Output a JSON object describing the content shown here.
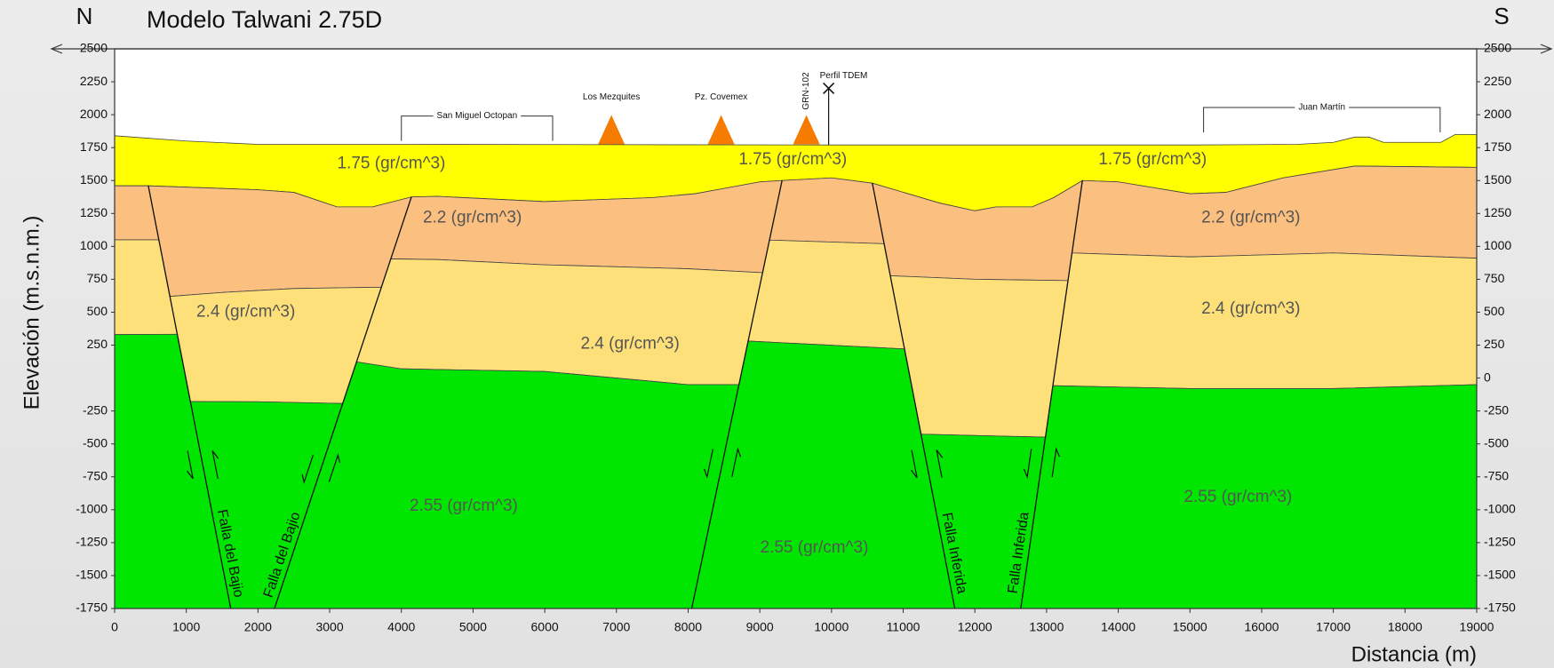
{
  "chart_data": {
    "type": "section",
    "title": "Modelo Talwani 2.75D",
    "north_label": "N",
    "south_label": "S",
    "x_label": "Distancia (m)",
    "y_label": "Elevación (m.s.n.m.)",
    "xlim": [
      0,
      19000
    ],
    "ylim": [
      -1750,
      2500
    ],
    "y2lim": [
      -1750,
      2500
    ],
    "xticks": [
      0,
      1000,
      2000,
      3000,
      4000,
      5000,
      6000,
      7000,
      8000,
      9000,
      10000,
      11000,
      12000,
      13000,
      14000,
      15000,
      16000,
      17000,
      18000,
      19000
    ],
    "yticks": [
      2500,
      2250,
      2000,
      1750,
      1500,
      1250,
      1000,
      750,
      500,
      250,
      -250,
      -500,
      -750,
      -1000,
      -1250,
      -1500,
      -1750
    ],
    "y2ticks": [
      2500,
      2250,
      2000,
      1750,
      1500,
      1250,
      1000,
      750,
      500,
      250,
      0,
      -250,
      -500,
      -750,
      -1000,
      -1250,
      -1500,
      -1750
    ],
    "bodies": [
      {
        "color": "#ffff00",
        "x": [
          0,
          1000,
          2000,
          4000,
          10000,
          15000,
          16500,
          17000,
          17300,
          17500,
          17700,
          18500,
          18700,
          19000,
          19000,
          17300,
          16300,
          15500,
          15000,
          14000,
          13500,
          13100,
          12800,
          12300,
          12000,
          11500,
          10570,
          10000,
          9310,
          9000,
          8400,
          8100,
          7500,
          6000,
          4500,
          4140,
          3600,
          3100,
          2500,
          2000,
          470,
          0
        ],
        "y": [
          1840,
          1800,
          1775,
          1775,
          1770,
          1770,
          1775,
          1790,
          1830,
          1830,
          1790,
          1790,
          1850,
          1850,
          1600,
          1610,
          1520,
          1410,
          1400,
          1490,
          1500,
          1370,
          1300,
          1300,
          1270,
          1330,
          1480,
          1520,
          1500,
          1490,
          1430,
          1400,
          1370,
          1340,
          1380,
          1375,
          1300,
          1300,
          1410,
          1430,
          1460,
          1460
        ]
      },
      {
        "color": "#fbbf80",
        "x": [
          0,
          470,
          617,
          0
        ],
        "y": [
          1460,
          1460,
          1050,
          1050
        ]
      },
      {
        "color": "#fbbf80",
        "x": [
          470,
          2000,
          2500,
          3100,
          3600,
          4140,
          3721,
          2500,
          1500,
          771
        ],
        "y": [
          1460,
          1430,
          1410,
          1300,
          1300,
          1375,
          690,
          680,
          650,
          620
        ]
      },
      {
        "color": "#fbbf80",
        "x": [
          4140,
          4500,
          6000,
          7500,
          8100,
          8400,
          9000,
          9310,
          9040,
          8000,
          6000,
          4500,
          3853
        ],
        "y": [
          1375,
          1380,
          1340,
          1370,
          1400,
          1430,
          1490,
          1500,
          800,
          830,
          860,
          900,
          905
        ]
      },
      {
        "color": "#fbbf80",
        "x": [
          9310,
          10000,
          10570,
          10734,
          9135
        ],
        "y": [
          1500,
          1520,
          1480,
          1020,
          1048
        ]
      },
      {
        "color": "#fbbf80",
        "x": [
          10570,
          11500,
          12000,
          12300,
          12800,
          13100,
          13500,
          13299,
          12000,
          10820
        ],
        "y": [
          1480,
          1330,
          1270,
          1300,
          1300,
          1370,
          1500,
          740,
          750,
          777
        ]
      },
      {
        "color": "#fbbf80",
        "x": [
          13500,
          14000,
          15000,
          15500,
          16300,
          17300,
          19000,
          19000,
          17000,
          15000,
          13354
        ],
        "y": [
          1500,
          1490,
          1400,
          1410,
          1520,
          1610,
          1600,
          910,
          950,
          920,
          950
        ]
      },
      {
        "color": "#fde07a",
        "x": [
          0,
          617,
          874,
          0
        ],
        "y": [
          1050,
          1050,
          333,
          330
        ]
      },
      {
        "color": "#fde07a",
        "x": [
          771,
          1500,
          2500,
          3721,
          3182,
          2000,
          1057
        ],
        "y": [
          620,
          650,
          680,
          690,
          -193,
          -180,
          -178
        ]
      },
      {
        "color": "#fde07a",
        "x": [
          3853,
          4500,
          6000,
          8000,
          9040,
          8709,
          8000,
          6000,
          4000,
          3375
        ],
        "y": [
          905,
          900,
          860,
          830,
          800,
          -50,
          -50,
          50,
          70,
          123
        ]
      },
      {
        "color": "#fde07a",
        "x": [
          9135,
          10734,
          11019,
          8837
        ],
        "y": [
          1048,
          1020,
          221,
          281
        ]
      },
      {
        "color": "#fde07a",
        "x": [
          10820,
          12000,
          13299,
          12984,
          11249
        ],
        "y": [
          777,
          750,
          740,
          -449,
          -426
        ]
      },
      {
        "color": "#fde07a",
        "x": [
          13354,
          15000,
          17000,
          19000,
          19000,
          17000,
          15000,
          13088
        ],
        "y": [
          950,
          920,
          950,
          910,
          -50,
          -80,
          -80,
          -58
        ]
      },
      {
        "color": "#00e600",
        "x": [
          0,
          874,
          1620,
          0
        ],
        "y": [
          330,
          333,
          -1750,
          -1750
        ]
      },
      {
        "color": "#00e600",
        "x": [
          1057,
          2000,
          3182,
          2230,
          1620
        ],
        "y": [
          -178,
          -180,
          -193,
          -1750,
          -1750
        ]
      },
      {
        "color": "#00e600",
        "x": [
          3375,
          4000,
          6000,
          8000,
          8709,
          8050,
          2230
        ],
        "y": [
          123,
          70,
          50,
          -50,
          -50,
          -1750,
          -1750
        ]
      },
      {
        "color": "#00e600",
        "x": [
          8837,
          11019,
          11720,
          8050
        ],
        "y": [
          281,
          221,
          -1750,
          -1750
        ]
      },
      {
        "color": "#00e600",
        "x": [
          11249,
          12984,
          12640,
          11720
        ],
        "y": [
          -426,
          -449,
          -1750,
          -1750
        ]
      },
      {
        "color": "#00e600",
        "x": [
          13088,
          15000,
          17000,
          19000,
          19000,
          12640
        ],
        "y": [
          -58,
          -80,
          -80,
          -50,
          -1750,
          -1750
        ]
      }
    ],
    "labels": [
      {
        "text": "1.75 (gr/cm^3)",
        "x": 3860,
        "y": 1627
      },
      {
        "text": "1.75 (gr/cm^3)",
        "x": 9460,
        "y": 1657
      },
      {
        "text": "1.75 (gr/cm^3)",
        "x": 14480,
        "y": 1657
      },
      {
        "text": "2.2 (gr/cm^3)",
        "x": 4990,
        "y": 1214
      },
      {
        "text": "2.2 (gr/cm^3)",
        "x": 15850,
        "y": 1214
      },
      {
        "text": "2.4 (gr/cm^3)",
        "x": 1830,
        "y": 499
      },
      {
        "text": "2.4 (gr/cm^3)",
        "x": 7190,
        "y": 258
      },
      {
        "text": "2.4 (gr/cm^3)",
        "x": 15850,
        "y": 522
      },
      {
        "text": "2.55 (gr/cm^3)",
        "x": 4870,
        "y": -975
      },
      {
        "text": "2.55 (gr/cm^3)",
        "x": 9760,
        "y": -1290
      },
      {
        "text": "2.55 (gr/cm^3)",
        "x": 15670,
        "y": -908
      }
    ],
    "faults": [
      {
        "label": "Falla del Bajio",
        "x": [
          470,
          1620
        ],
        "y": [
          1460,
          -1750
        ]
      },
      {
        "label": "Falla del Bajio",
        "x": [
          4140,
          2230
        ],
        "y": [
          1375,
          -1750
        ]
      },
      {
        "label": null,
        "x": [
          9310,
          8050
        ],
        "y": [
          1500,
          -1750
        ]
      },
      {
        "label": "Falla Inferida",
        "x": [
          10570,
          11720
        ],
        "y": [
          1480,
          -1750
        ]
      },
      {
        "label": "Falla Inferida",
        "x": [
          13500,
          12640
        ],
        "y": [
          1500,
          -1750
        ]
      }
    ],
    "stations": [
      {
        "label": "Los Mezquites",
        "x": 6930,
        "y": 1775,
        "orientation": "horizontal"
      },
      {
        "label": "Pz. Covemex",
        "x": 8460,
        "y": 1775,
        "orientation": "horizontal"
      },
      {
        "label": "GRN-102",
        "x": 9650,
        "y": 1775,
        "orientation": "vertical"
      }
    ],
    "profile": {
      "label": "Perfil TDEM",
      "x": 9960,
      "y": [
        2200,
        1770
      ]
    },
    "brackets": [
      {
        "label": "San Miguel Octopan",
        "x": [
          4000,
          6110
        ],
        "y": 1990
      },
      {
        "label": "Juan Martín",
        "x": [
          15190,
          18490
        ],
        "y": 2055
      }
    ]
  }
}
